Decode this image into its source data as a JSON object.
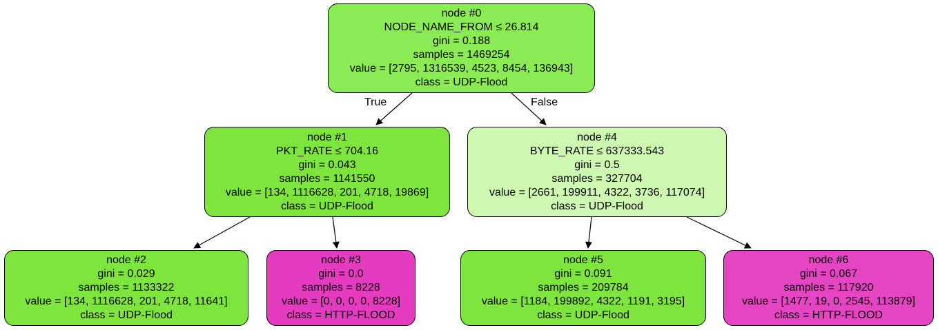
{
  "colors": {
    "leaning_udp_strong": "#7ee53e",
    "leaning_udp_root": "#8beb54",
    "leaning_udp_weak": "#cef7b2",
    "http_flood": "#e53bc0",
    "http_flood_alt": "#e544c3",
    "edge": "#000000"
  },
  "nodes": {
    "n0": {
      "title": "node #0",
      "split": "NODE_NAME_FROM ≤ 26.814",
      "gini": "gini = 0.188",
      "samples": "samples = 1469254",
      "value": "value = [2795, 1316539, 4523, 8454, 136943]",
      "class": "class = UDP-Flood"
    },
    "n1": {
      "title": "node #1",
      "split": "PKT_RATE ≤ 704.16",
      "gini": "gini = 0.043",
      "samples": "samples = 1141550",
      "value": "value = [134, 1116628, 201, 4718, 19869]",
      "class": "class = UDP-Flood"
    },
    "n2": {
      "title": "node #2",
      "gini": "gini = 0.029",
      "samples": "samples = 1133322",
      "value": "value = [134, 1116628, 201, 4718, 11641]",
      "class": "class = UDP-Flood"
    },
    "n3": {
      "title": "node #3",
      "gini": "gini = 0.0",
      "samples": "samples = 8228",
      "value": "value = [0, 0, 0, 0, 8228]",
      "class": "class = HTTP-FLOOD"
    },
    "n4": {
      "title": "node #4",
      "split": "BYTE_RATE ≤ 637333.543",
      "gini": "gini = 0.5",
      "samples": "samples = 327704",
      "value": "value = [2661, 199911, 4322, 3736, 117074]",
      "class": "class = UDP-Flood"
    },
    "n5": {
      "title": "node #5",
      "gini": "gini = 0.091",
      "samples": "samples = 209784",
      "value": "value = [1184, 199892, 4322, 1191, 3195]",
      "class": "class = UDP-Flood"
    },
    "n6": {
      "title": "node #6",
      "gini": "gini = 0.067",
      "samples": "samples = 117920",
      "value": "value = [1477, 19, 0, 2545, 113879]",
      "class": "class = HTTP-FLOOD"
    }
  },
  "edge_labels": {
    "true_label": "True",
    "false_label": "False"
  }
}
